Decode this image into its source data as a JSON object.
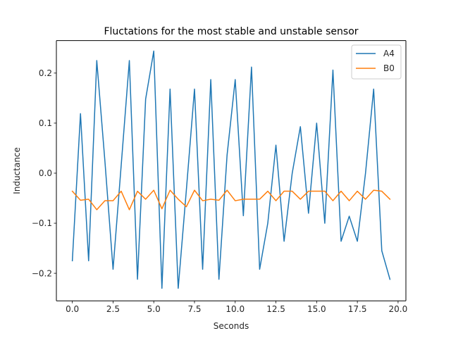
{
  "chart_data": {
    "type": "line",
    "title": "Fluctations for the most stable and unstable sensor",
    "xlabel": "Seconds",
    "ylabel": "Inductance",
    "xlim": [
      -0.98,
      20.48
    ],
    "ylim": [
      -0.255,
      0.265
    ],
    "xticks": [
      0.0,
      2.5,
      5.0,
      7.5,
      10.0,
      12.5,
      15.0,
      17.5,
      20.0
    ],
    "xtick_labels": [
      "0.0",
      "2.5",
      "5.0",
      "7.5",
      "10.0",
      "12.5",
      "15.0",
      "17.5",
      "20.0"
    ],
    "yticks": [
      -0.2,
      -0.1,
      0.0,
      0.1,
      0.2
    ],
    "ytick_labels": [
      "−0.2",
      "−0.1",
      "0.0",
      "0.1",
      "0.2"
    ],
    "grid": false,
    "legend": "top-right",
    "x": [
      0.0,
      0.5,
      1.0,
      1.5,
      2.0,
      2.5,
      3.0,
      3.5,
      4.0,
      4.5,
      5.0,
      5.5,
      6.0,
      6.5,
      7.0,
      7.5,
      8.0,
      8.5,
      9.0,
      9.5,
      10.0,
      10.5,
      11.0,
      11.5,
      12.0,
      12.5,
      13.0,
      13.5,
      14.0,
      14.5,
      15.0,
      15.5,
      16.0,
      16.5,
      17.0,
      17.5,
      18.0,
      18.5,
      19.0,
      19.5
    ],
    "series": [
      {
        "name": "A4",
        "color": "#1f77b4",
        "values": [
          -0.175,
          0.119,
          -0.175,
          0.225,
          0.024,
          -0.192,
          0.016,
          0.225,
          -0.212,
          0.148,
          0.244,
          -0.23,
          0.168,
          -0.23,
          -0.034,
          0.168,
          -0.192,
          0.187,
          -0.212,
          0.036,
          0.187,
          -0.085,
          0.212,
          -0.192,
          -0.1,
          0.056,
          -0.136,
          0.0,
          0.093,
          -0.08,
          0.1,
          -0.1,
          0.206,
          -0.136,
          -0.086,
          -0.136,
          0.0,
          0.168,
          -0.155,
          -0.212
        ]
      },
      {
        "name": "B0",
        "color": "#ff7f0e",
        "values": [
          -0.036,
          -0.054,
          -0.052,
          -0.073,
          -0.055,
          -0.055,
          -0.036,
          -0.073,
          -0.036,
          -0.052,
          -0.034,
          -0.071,
          -0.034,
          -0.052,
          -0.067,
          -0.034,
          -0.055,
          -0.052,
          -0.054,
          -0.034,
          -0.055,
          -0.052,
          -0.052,
          -0.052,
          -0.036,
          -0.055,
          -0.036,
          -0.036,
          -0.052,
          -0.036,
          -0.036,
          -0.036,
          -0.055,
          -0.036,
          -0.055,
          -0.036,
          -0.052,
          -0.034,
          -0.036,
          -0.052
        ]
      }
    ]
  }
}
